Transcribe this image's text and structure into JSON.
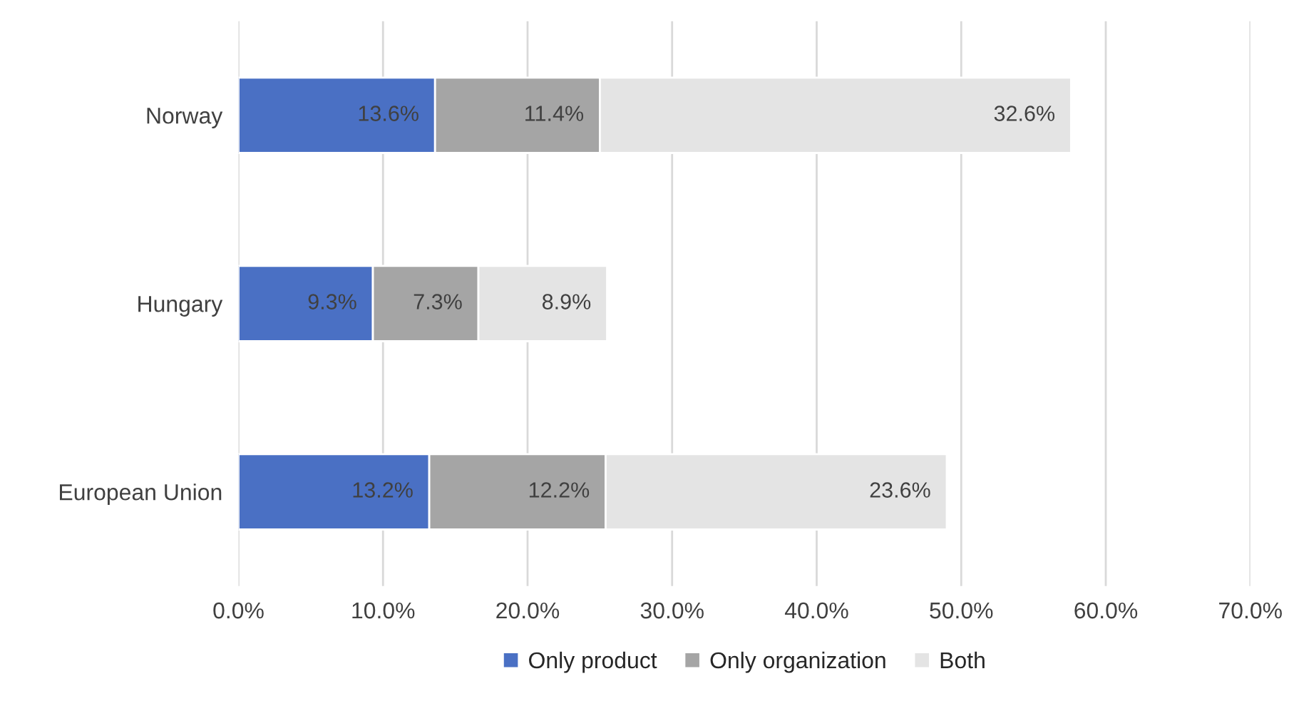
{
  "chart_data": {
    "type": "bar",
    "orientation": "horizontal",
    "stacked": true,
    "categories": [
      "Norway",
      "Hungary",
      "European Union"
    ],
    "series": [
      {
        "name": "Only product",
        "color": "#4a70c4",
        "values": [
          13.6,
          9.3,
          13.2
        ],
        "value_labels": [
          "13.6%",
          "9.3%",
          "13.2%"
        ]
      },
      {
        "name": "Only organization",
        "color": "#a5a5a5",
        "values": [
          11.4,
          7.3,
          12.2
        ],
        "value_labels": [
          "11.4%",
          "7.3%",
          "12.2%"
        ]
      },
      {
        "name": "Both",
        "color": "#e4e4e4",
        "values": [
          32.6,
          8.9,
          23.6
        ],
        "value_labels": [
          "32.6%",
          "8.9%",
          "23.6%"
        ]
      }
    ],
    "xlim": [
      0,
      70
    ],
    "xticks": [
      {
        "value": 0,
        "label": "0.0%"
      },
      {
        "value": 10,
        "label": "10.0%"
      },
      {
        "value": 20,
        "label": "20.0%"
      },
      {
        "value": 30,
        "label": "30.0%"
      },
      {
        "value": 40,
        "label": "40.0%"
      },
      {
        "value": 50,
        "label": "50.0%"
      },
      {
        "value": 60,
        "label": "60.0%"
      },
      {
        "value": 70,
        "label": "70.0%"
      }
    ],
    "grid": "x",
    "legend": "bottom"
  }
}
